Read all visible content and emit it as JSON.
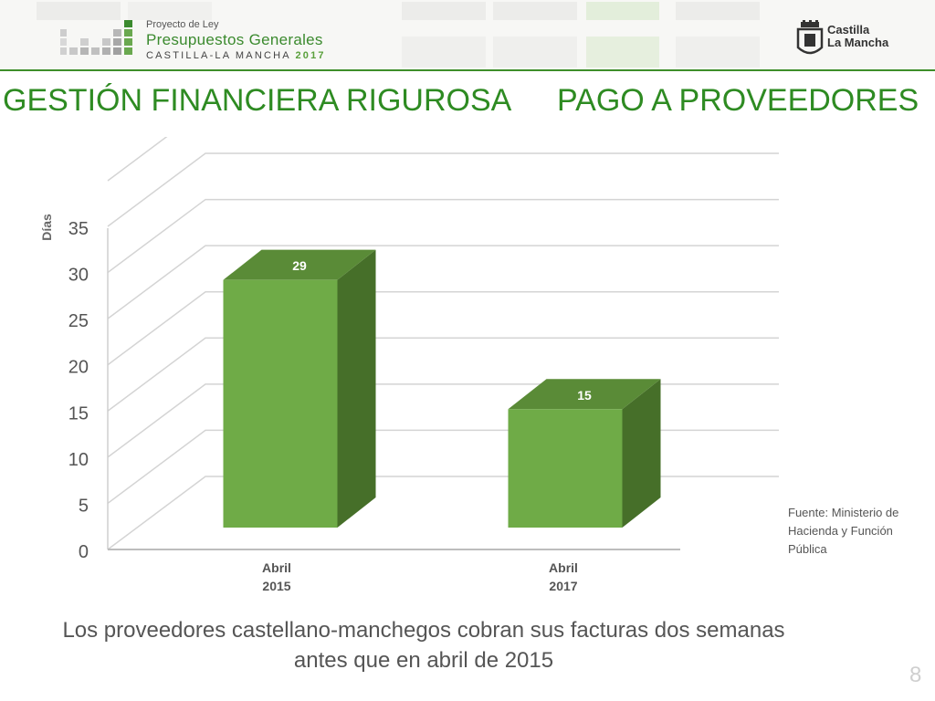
{
  "header": {
    "logo_line1": "Proyecto de Ley",
    "logo_line2": "Presupuestos Generales",
    "logo_line3": "CASTILLA-LA MANCHA",
    "logo_year": "2017",
    "region_line1": "Castilla",
    "region_line2": "La Mancha"
  },
  "slide": {
    "title_left": "GESTIÓN FINANCIERA RIGUROSA",
    "title_right": "PAGO A PROVEEDORES",
    "source": "Fuente: Ministerio de Hacienda y Función Pública",
    "caption": "Los proveedores castellano-manchegos cobran sus facturas dos semanas antes que en abril de 2015",
    "page_number": "8"
  },
  "colors": {
    "accent": "#2e8b22",
    "bar_front": "#6fab47",
    "bar_side": "#466f29",
    "bar_top": "#5a8b37"
  },
  "chart_data": {
    "type": "bar",
    "categories": [
      "Abril\n2015",
      "Abril\n2017"
    ],
    "values": [
      29,
      15
    ],
    "title": "",
    "xlabel": "",
    "ylabel": "Días",
    "ylim": [
      0,
      35
    ],
    "yticks": [
      0,
      5,
      10,
      15,
      20,
      25,
      30,
      35
    ],
    "grid": true,
    "style": "3d-column",
    "data_labels": true
  }
}
